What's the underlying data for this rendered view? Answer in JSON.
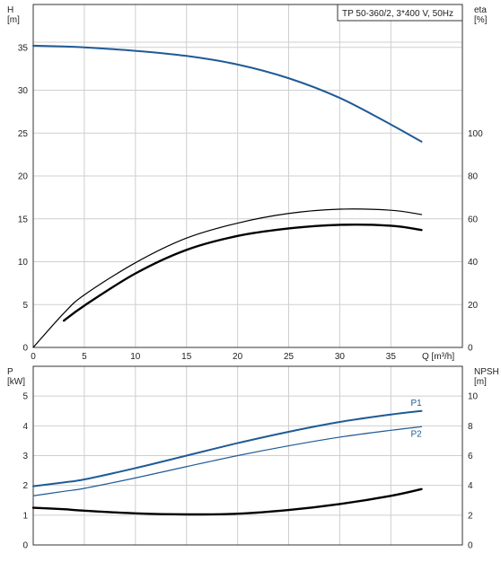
{
  "chart_data": [
    {
      "type": "line",
      "title": "TP 50-360/2, 3*400 V, 50Hz",
      "xlabel": "Q [m³/h]",
      "ylabel": "H",
      "ylabel_unit": "[m]",
      "y2label": "eta",
      "y2label_unit": "[%]",
      "xlim": [
        0,
        42
      ],
      "ylim": [
        0,
        40
      ],
      "y2lim": [
        0,
        160
      ],
      "x_ticks": [
        0,
        5,
        10,
        15,
        20,
        25,
        30,
        35
      ],
      "y_ticks": [
        0,
        5,
        10,
        15,
        20,
        25,
        30,
        35
      ],
      "y2_ticks": [
        0,
        20,
        40,
        60,
        80,
        100
      ],
      "grid": true,
      "series": [
        {
          "axis": "left",
          "color": "#1f5a96",
          "x": [
            0,
            3,
            5,
            10,
            15,
            20,
            25,
            30,
            35,
            38
          ],
          "y": [
            35.2,
            35.1,
            35.0,
            34.6,
            34.0,
            33.0,
            31.4,
            29.1,
            26.0,
            24.0
          ]
        },
        {
          "axis": "right",
          "color": "#000000",
          "x": [
            0,
            3,
            5,
            10,
            15,
            20,
            25,
            30,
            35,
            38
          ],
          "y": [
            0,
            16,
            24.5,
            39.5,
            51,
            58,
            62.5,
            64.5,
            64,
            62
          ]
        },
        {
          "axis": "right",
          "color": "#000000",
          "x": [
            3,
            5,
            10,
            15,
            20,
            25,
            30,
            35,
            38
          ],
          "y": [
            12.5,
            19.5,
            34.5,
            45.5,
            52,
            55.5,
            57.2,
            56.8,
            54.8
          ]
        }
      ]
    },
    {
      "type": "line",
      "xlabel": "",
      "ylabel": "P",
      "ylabel_unit": "[kW]",
      "y2label": "NPSH",
      "y2label_unit": "[m]",
      "xlim": [
        0,
        42
      ],
      "ylim": [
        0,
        6
      ],
      "y2lim": [
        0,
        12
      ],
      "y_ticks": [
        0,
        1,
        2,
        3,
        4,
        5
      ],
      "y2_ticks": [
        0,
        2,
        4,
        6,
        8,
        10
      ],
      "grid": true,
      "series": [
        {
          "name": "P1",
          "axis": "left",
          "color": "#1f5a96",
          "x": [
            0,
            3,
            5,
            10,
            15,
            20,
            25,
            30,
            35,
            38
          ],
          "y": [
            1.97,
            2.1,
            2.2,
            2.58,
            3.0,
            3.42,
            3.8,
            4.13,
            4.38,
            4.5
          ]
        },
        {
          "name": "P2",
          "axis": "left",
          "color": "#1f5a96",
          "x": [
            0,
            3,
            5,
            10,
            15,
            20,
            25,
            30,
            35,
            38
          ],
          "y": [
            1.65,
            1.8,
            1.9,
            2.25,
            2.63,
            3.0,
            3.33,
            3.62,
            3.85,
            3.97
          ]
        },
        {
          "axis": "right",
          "color": "#000000",
          "x": [
            0,
            3,
            5,
            10,
            15,
            20,
            25,
            30,
            35,
            38
          ],
          "y": [
            2.5,
            2.4,
            2.3,
            2.12,
            2.05,
            2.1,
            2.35,
            2.75,
            3.3,
            3.75
          ]
        }
      ]
    }
  ]
}
